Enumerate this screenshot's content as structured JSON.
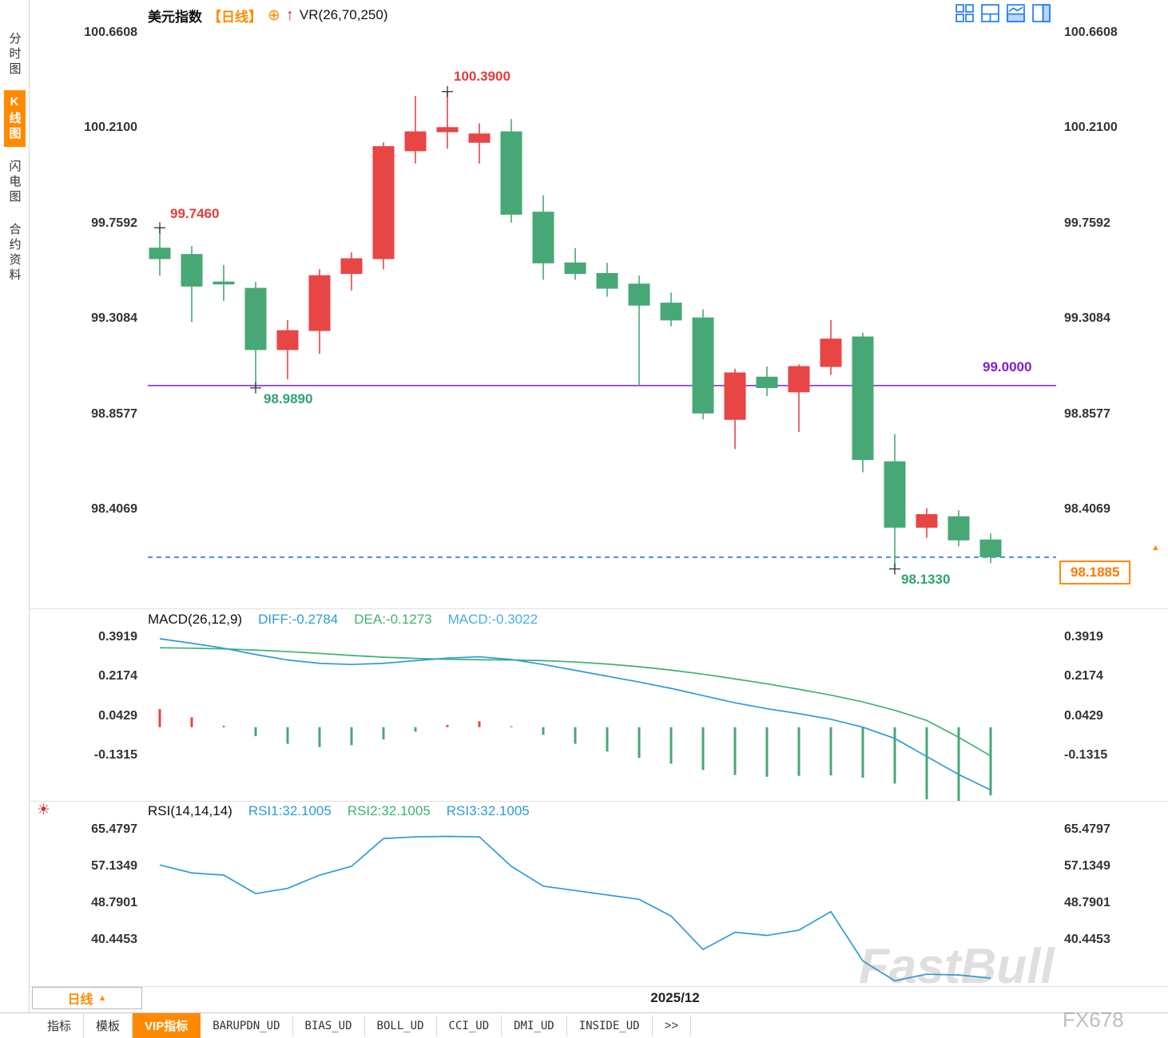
{
  "header": {
    "symbol": "美元指数",
    "period_tag": "【日线】",
    "indicator_label": "VR(26,70,250)"
  },
  "icons": {
    "plus_circle": "⊕",
    "vr_arrow": "↑",
    "period_arrow": "▲",
    "price_arrow": "▲",
    "sun": "☀"
  },
  "sidebar": {
    "items": [
      {
        "id": "time-chart",
        "label": "分时图",
        "active": false
      },
      {
        "id": "candle-chart",
        "label": "K线图",
        "active": true
      },
      {
        "id": "lightning-chart",
        "label": "闪电图",
        "active": false
      },
      {
        "id": "contract-info",
        "label": "合约资料",
        "active": false
      }
    ]
  },
  "main_chart": {
    "y_axis_labels": [
      "100.6608",
      "100.2100",
      "99.7592",
      "99.3084",
      "98.8577",
      "98.4069"
    ],
    "annotations": {
      "swing_high_1": "99.7460",
      "swing_high_2": "100.3900",
      "swing_low_1": "98.9890",
      "swing_low_2": "98.1330"
    },
    "horizontal_line_label": "99.0000",
    "last_price": "98.1885"
  },
  "macd_panel": {
    "title": "MACD(26,12,9)",
    "diff_label": "DIFF:-0.2784",
    "dea_label": "DEA:-0.1273",
    "macd_label": "MACD:-0.3022",
    "y_axis_labels": [
      "0.3919",
      "0.2174",
      "0.0429",
      "-0.1315"
    ]
  },
  "rsi_panel": {
    "title": "RSI(14,14,14)",
    "rsi1_label": "RSI1:32.1005",
    "rsi2_label": "RSI2:32.1005",
    "rsi3_label": "RSI3:32.1005",
    "y_axis_labels": [
      "65.4797",
      "57.1349",
      "48.7901",
      "40.4453"
    ]
  },
  "x_axis": {
    "label": "2025/12"
  },
  "period_selector": {
    "label": "日线"
  },
  "bottom_tabs": [
    {
      "id": "indicators",
      "label": "指标",
      "active": false
    },
    {
      "id": "templates",
      "label": "模板",
      "active": false
    },
    {
      "id": "vip-indicators",
      "label": "VIP指标",
      "active": true
    },
    {
      "id": "barupdn-ud",
      "label": "BARUPDN_UD",
      "active": false
    },
    {
      "id": "bias-ud",
      "label": "BIAS_UD",
      "active": false
    },
    {
      "id": "boll-ud",
      "label": "BOLL_UD",
      "active": false
    },
    {
      "id": "cci-ud",
      "label": "CCI_UD",
      "active": false
    },
    {
      "id": "dmi-ud",
      "label": "DMI_UD",
      "active": false
    },
    {
      "id": "inside-ud",
      "label": "INSIDE_UD",
      "active": false
    },
    {
      "id": "more",
      "label": ">>",
      "active": false
    }
  ],
  "watermark": {
    "main": "FastBull",
    "sub": "FX678"
  },
  "colors": {
    "up": "#e84545",
    "down": "#47a876",
    "purple_line": "#7b1fd2",
    "dashed_line": "#1e7ad9",
    "accent_orange": "#ff8a00",
    "diff_line": "#2d9bd8",
    "dea_line": "#3cb371",
    "rsi_line": "#2d9bd8"
  },
  "chart_data": [
    {
      "type": "candlestick",
      "title": "美元指数 日线",
      "ylim": [
        98.05,
        100.72
      ],
      "y_ticks": [
        100.6608,
        100.21,
        99.7592,
        99.3084,
        98.8577,
        98.4069
      ],
      "hline": 99.0,
      "last_price": 98.1885,
      "candles": [
        [
          99.65,
          99.746,
          99.52,
          99.6
        ],
        [
          99.62,
          99.66,
          99.3,
          99.47
        ],
        [
          99.49,
          99.57,
          99.4,
          99.48
        ],
        [
          99.46,
          99.49,
          98.989,
          99.17
        ],
        [
          99.17,
          99.31,
          99.03,
          99.26
        ],
        [
          99.26,
          99.55,
          99.15,
          99.52
        ],
        [
          99.53,
          99.63,
          99.45,
          99.6
        ],
        [
          99.6,
          100.15,
          99.55,
          100.13
        ],
        [
          100.11,
          100.37,
          100.05,
          100.2
        ],
        [
          100.2,
          100.39,
          100.12,
          100.22
        ],
        [
          100.15,
          100.24,
          100.05,
          100.19
        ],
        [
          100.2,
          100.26,
          99.77,
          99.81
        ],
        [
          99.82,
          99.9,
          99.5,
          99.58
        ],
        [
          99.58,
          99.65,
          99.5,
          99.53
        ],
        [
          99.53,
          99.58,
          99.42,
          99.46
        ],
        [
          99.48,
          99.52,
          99.0,
          99.38
        ],
        [
          99.39,
          99.44,
          99.28,
          99.31
        ],
        [
          99.32,
          99.36,
          98.84,
          98.87
        ],
        [
          98.84,
          99.08,
          98.7,
          99.06
        ],
        [
          99.04,
          99.09,
          98.95,
          98.99
        ],
        [
          98.97,
          99.1,
          98.78,
          99.09
        ],
        [
          99.09,
          99.31,
          99.05,
          99.22
        ],
        [
          99.23,
          99.25,
          98.59,
          98.65
        ],
        [
          98.64,
          98.77,
          98.133,
          98.33
        ],
        [
          98.33,
          98.42,
          98.28,
          98.39
        ],
        [
          98.38,
          98.41,
          98.24,
          98.27
        ],
        [
          98.27,
          98.3,
          98.16,
          98.19
        ]
      ],
      "markers": [
        {
          "index": 0,
          "pos": "high",
          "label": "99.7460"
        },
        {
          "index": 9,
          "pos": "high",
          "label": "100.3900"
        },
        {
          "index": 3,
          "pos": "low",
          "label": "98.9890"
        },
        {
          "index": 23,
          "pos": "low",
          "label": "98.1330"
        }
      ]
    },
    {
      "type": "line+bar",
      "title": "MACD(26,12,9)",
      "y_ticks": [
        0.3919,
        0.2174,
        0.0429,
        -0.1315
      ],
      "hist_scale": 2,
      "diff": [
        0.392,
        0.372,
        0.35,
        0.322,
        0.298,
        0.283,
        0.278,
        0.283,
        0.295,
        0.306,
        0.312,
        0.3,
        0.278,
        0.252,
        0.226,
        0.2,
        0.172,
        0.14,
        0.108,
        0.082,
        0.06,
        0.035,
        0.0,
        -0.05,
        -0.13,
        -0.21,
        -0.2784
      ],
      "dea": [
        0.352,
        0.35,
        0.347,
        0.342,
        0.335,
        0.327,
        0.318,
        0.31,
        0.305,
        0.301,
        0.299,
        0.298,
        0.295,
        0.289,
        0.28,
        0.268,
        0.253,
        0.235,
        0.214,
        0.192,
        0.168,
        0.142,
        0.112,
        0.075,
        0.03,
        -0.045,
        -0.1273
      ]
    },
    {
      "type": "line",
      "title": "RSI(14,14,14)",
      "y_ticks": [
        65.4797,
        57.1349,
        48.7901,
        40.4453
      ],
      "rsi": [
        57.8,
        56.0,
        55.5,
        51.3,
        52.5,
        55.5,
        57.5,
        63.8,
        64.2,
        64.3,
        64.2,
        57.5,
        53.0,
        52.0,
        51.0,
        50.0,
        46.2,
        38.6,
        42.5,
        41.8,
        43.0,
        47.2,
        36.0,
        31.5,
        33.0,
        32.8,
        32.1
      ]
    }
  ]
}
